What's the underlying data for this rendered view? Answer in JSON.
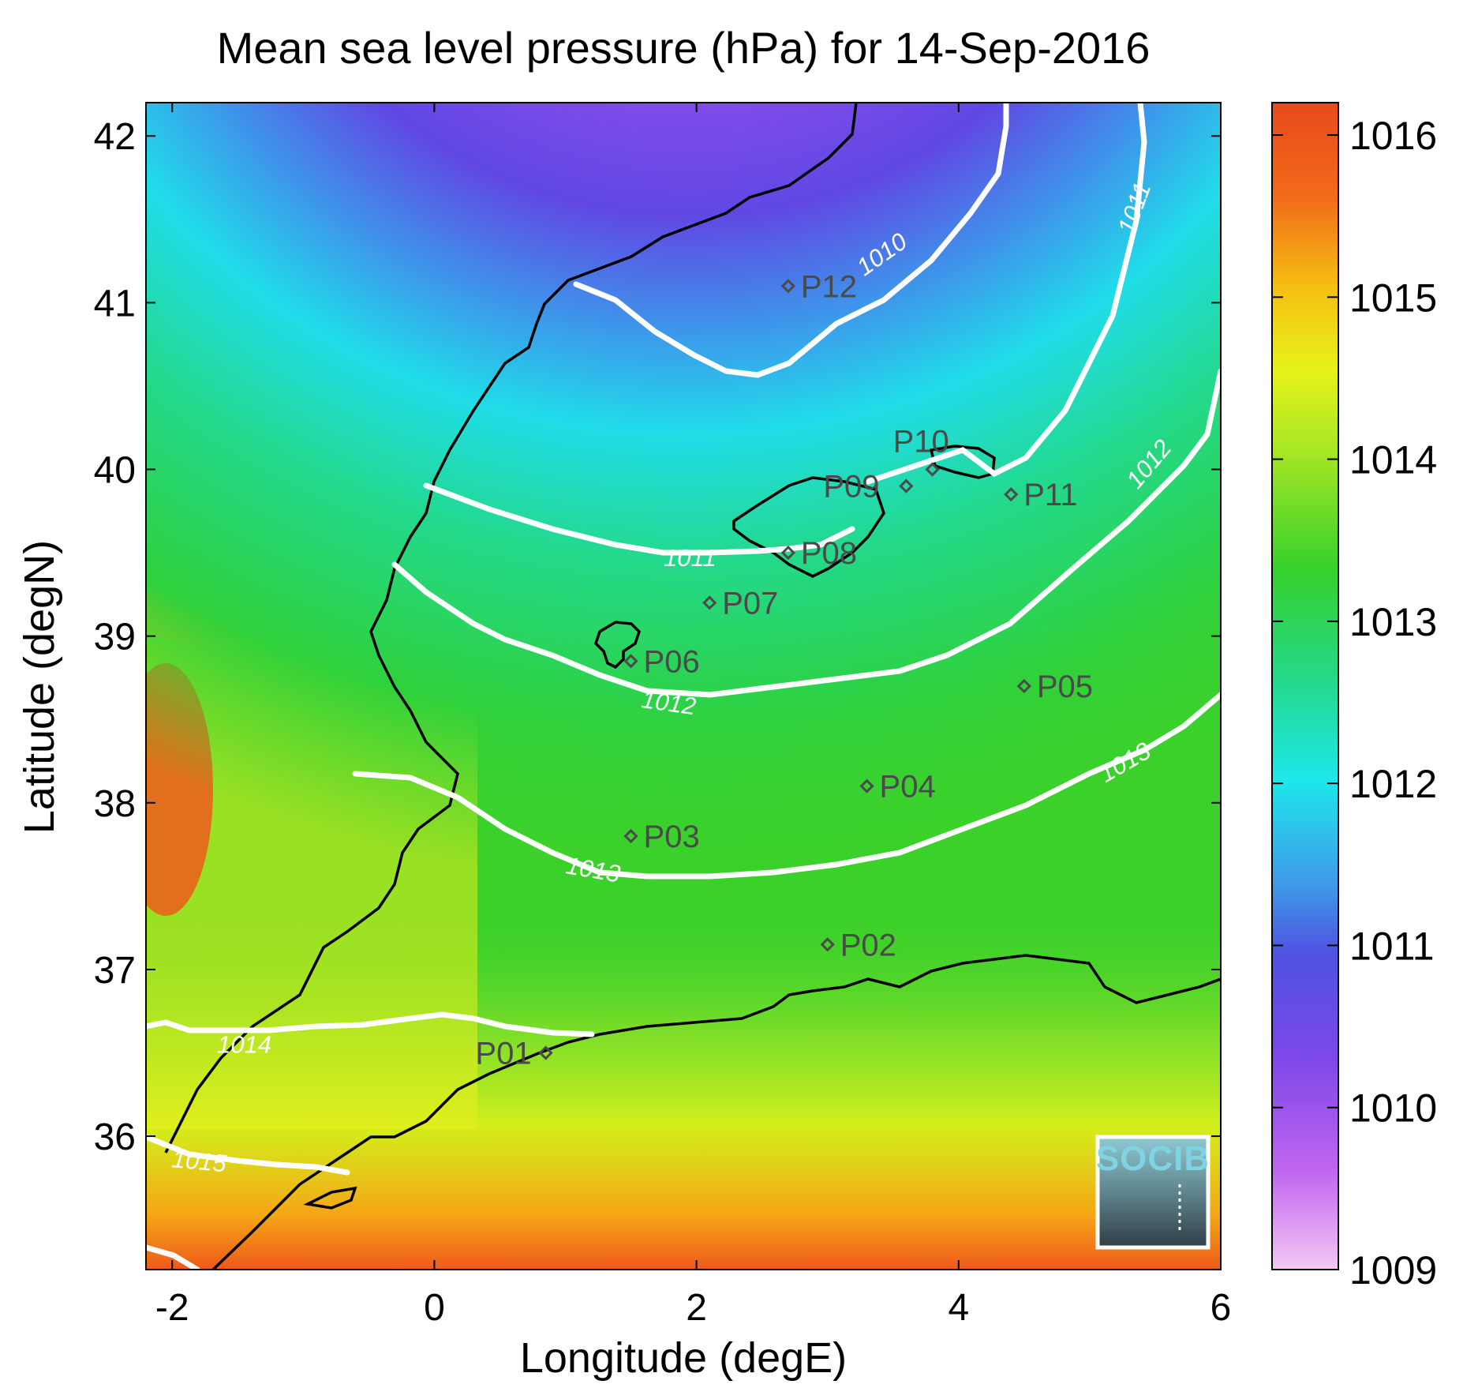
{
  "title": "Mean sea level pressure (hPa) for 14-Sep-2016",
  "xlabel": "Longitude (degE)",
  "ylabel": "Latitude (degN)",
  "chart_data": {
    "type": "heatmap",
    "variable": "Mean sea level pressure",
    "units": "hPa",
    "date": "14-Sep-2016",
    "xlim": [
      -2.2,
      6.0
    ],
    "ylim": [
      35.2,
      42.2
    ],
    "xticks": [
      -2,
      0,
      2,
      4,
      6
    ],
    "yticks": [
      36,
      37,
      38,
      39,
      40,
      41,
      42
    ],
    "colorbar": {
      "range": [
        1009,
        1016.2
      ],
      "ticks": [
        1009,
        1010,
        1011,
        1012,
        1013,
        1014,
        1015,
        1016
      ],
      "colormap": [
        "#f4c8f4",
        "#b655ee",
        "#6648e4",
        "#3f9ae8",
        "#1de8ea",
        "#26d36c",
        "#38d12b",
        "#d8f01a",
        "#f6c012",
        "#ef4e1a"
      ]
    },
    "contour_labels": [
      {
        "value": "1010",
        "lon": 3.45,
        "lat": 41.25
      },
      {
        "value": "1011",
        "lon": 5.4,
        "lat": 41.55
      },
      {
        "value": "1011",
        "lon": 1.95,
        "lat": 39.42
      },
      {
        "value": "1012",
        "lon": 5.5,
        "lat": 40.0
      },
      {
        "value": "1012",
        "lon": 1.78,
        "lat": 38.55
      },
      {
        "value": "1013",
        "lon": 5.3,
        "lat": 38.2
      },
      {
        "value": "1013",
        "lon": 1.2,
        "lat": 37.55
      },
      {
        "value": "1014",
        "lon": -1.45,
        "lat": 36.5
      },
      {
        "value": "1015",
        "lon": -1.8,
        "lat": 35.8
      }
    ],
    "stations": [
      {
        "name": "P01",
        "lon": 0.85,
        "lat": 36.5
      },
      {
        "name": "P02",
        "lon": 3.0,
        "lat": 37.15
      },
      {
        "name": "P03",
        "lon": 1.5,
        "lat": 37.8
      },
      {
        "name": "P04",
        "lon": 3.3,
        "lat": 38.1
      },
      {
        "name": "P05",
        "lon": 4.5,
        "lat": 38.7
      },
      {
        "name": "P06",
        "lon": 1.5,
        "lat": 38.85
      },
      {
        "name": "P07",
        "lon": 2.1,
        "lat": 39.2
      },
      {
        "name": "P08",
        "lon": 2.7,
        "lat": 39.5
      },
      {
        "name": "P09",
        "lon": 3.6,
        "lat": 39.9
      },
      {
        "name": "P10",
        "lon": 3.8,
        "lat": 40.0
      },
      {
        "name": "P11",
        "lon": 4.4,
        "lat": 39.85
      },
      {
        "name": "P12",
        "lon": 2.7,
        "lat": 41.1
      }
    ]
  },
  "logo": {
    "text": "SOCIB"
  }
}
